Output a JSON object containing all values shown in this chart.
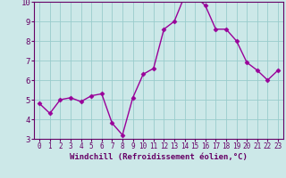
{
  "x": [
    0,
    1,
    2,
    3,
    4,
    5,
    6,
    7,
    8,
    9,
    10,
    11,
    12,
    13,
    14,
    15,
    16,
    17,
    18,
    19,
    20,
    21,
    22,
    23
  ],
  "y": [
    4.8,
    4.3,
    5.0,
    5.1,
    4.9,
    5.2,
    5.3,
    3.8,
    3.2,
    5.1,
    6.3,
    6.6,
    8.6,
    9.0,
    10.3,
    10.3,
    9.8,
    8.6,
    8.6,
    8.0,
    6.9,
    6.5,
    6.0,
    6.5
  ],
  "line_color": "#990099",
  "marker": "D",
  "marker_size": 2.5,
  "background_color": "#cce8e8",
  "grid_color": "#99cccc",
  "xlabel": "Windchill (Refroidissement éolien,°C)",
  "tick_color": "#660066",
  "ylim": [
    3,
    10
  ],
  "xlim": [
    -0.5,
    23.5
  ],
  "yticks": [
    3,
    4,
    5,
    6,
    7,
    8,
    9,
    10
  ],
  "xticks": [
    0,
    1,
    2,
    3,
    4,
    5,
    6,
    7,
    8,
    9,
    10,
    11,
    12,
    13,
    14,
    15,
    16,
    17,
    18,
    19,
    20,
    21,
    22,
    23
  ],
  "spine_color": "#660066",
  "xlabel_fontsize": 6.5,
  "tick_fontsize_x": 5.5,
  "tick_fontsize_y": 6.5,
  "linewidth": 1.0
}
